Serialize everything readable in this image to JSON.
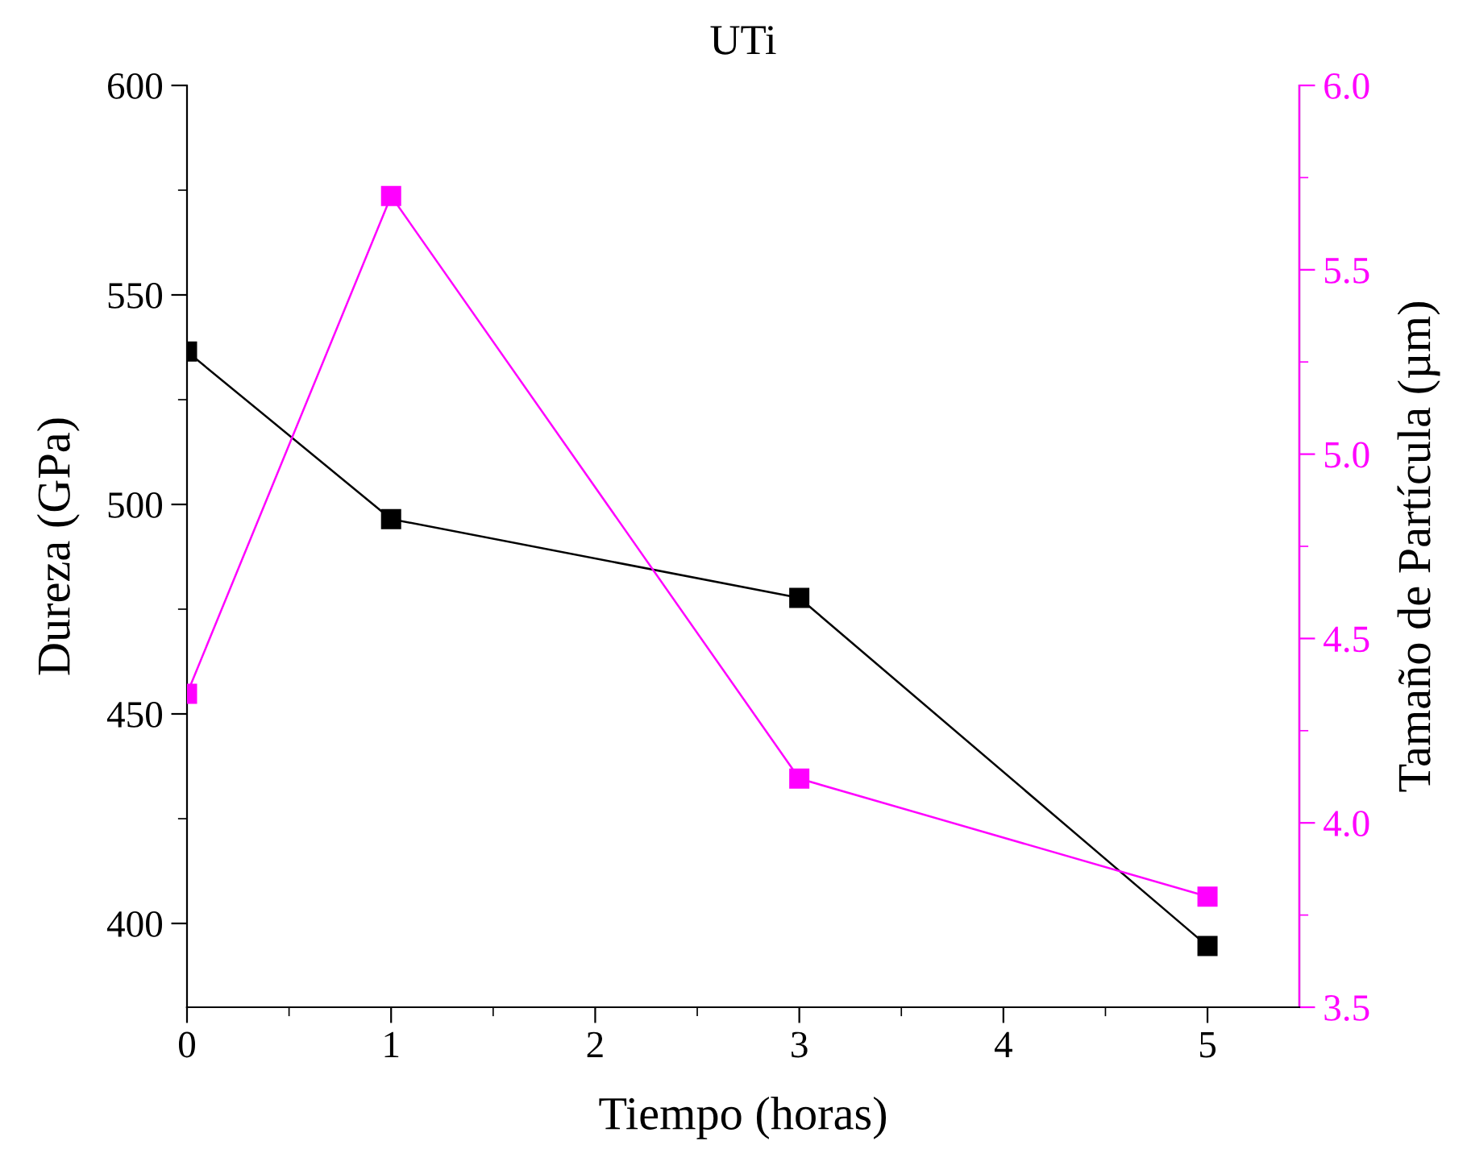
{
  "chart_data": {
    "type": "line",
    "title": "UTi",
    "xlabel": "Tiempo (horas)",
    "ylabel": "Dureza (GPa)",
    "y2label": "Tamaño de Partícula (µm)",
    "x": [
      0,
      1,
      3,
      5
    ],
    "series": [
      {
        "color": "#000000",
        "values": [
          536.5,
          496.5,
          477.7,
          394.6
        ]
      },
      {
        "color": "#ff00ff",
        "axis": "y2",
        "values": [
          4.35,
          5.7,
          4.12,
          3.8
        ]
      }
    ],
    "xlim": [
      0,
      5.45
    ],
    "xticks": [
      0,
      1,
      2,
      3,
      4,
      5
    ],
    "ylim": [
      380,
      600
    ],
    "yticks": [
      400,
      450,
      500,
      550,
      600
    ],
    "y2lim": [
      3.5,
      6.0
    ],
    "y2ticks": [
      {
        "value": 3.5,
        "label": "3.5"
      },
      {
        "value": 4.0,
        "label": "4.0"
      },
      {
        "value": 4.5,
        "label": "4.5"
      },
      {
        "value": 5.0,
        "label": "5.0"
      },
      {
        "value": 5.5,
        "label": "5.5"
      },
      {
        "value": 6.0,
        "label": "6.0"
      }
    ],
    "marker": "square",
    "line_style": "solid",
    "grid": false,
    "legend": false
  }
}
